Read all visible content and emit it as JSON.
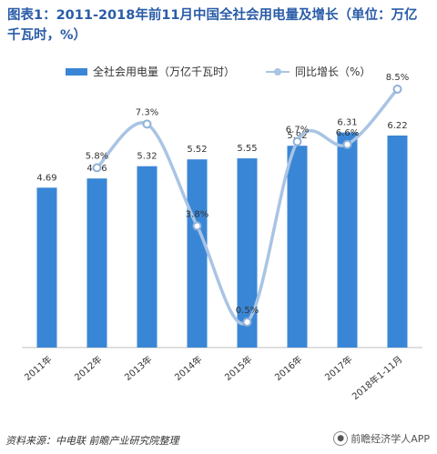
{
  "title": "图表1：2011-2018年前11月中国全社会用电量及增长（单位：万亿千瓦时，%）",
  "legend": {
    "bar_label": "全社会用电量（万亿千瓦时）",
    "line_label": "同比增长（%）"
  },
  "source": "资料来源：中电联 前瞻产业研究院整理",
  "badge": "前瞻经济学人APP",
  "colors": {
    "bar": "#3a86d6",
    "line": "#a9c4e4",
    "title": "#2a5ca8"
  },
  "chart_data": {
    "type": "bar",
    "categories": [
      "2011年",
      "2012年",
      "2013年",
      "2014年",
      "2015年",
      "2016年",
      "2017年",
      "2018年1-11月"
    ],
    "series": [
      {
        "name": "全社会用电量（万亿千瓦时）",
        "type": "bar",
        "values": [
          4.69,
          4.96,
          5.32,
          5.52,
          5.55,
          5.92,
          6.31,
          6.22
        ],
        "labels": [
          "4.69",
          "4.96",
          "5.32",
          "5.52",
          "5.55",
          "5.92",
          "6.31",
          "6.22"
        ]
      },
      {
        "name": "同比增长（%）",
        "type": "line",
        "smooth": true,
        "values": [
          null,
          5.8,
          7.3,
          3.8,
          0.5,
          6.7,
          6.6,
          8.5
        ],
        "labels": [
          "",
          "5.8%",
          "7.3%",
          "3.8%",
          "0.5%",
          "6.7%",
          "6.6%",
          "8.5%"
        ]
      }
    ],
    "axes": {
      "bar_ylim": [
        0,
        7.0
      ],
      "line_ylim": [
        0,
        8.5
      ],
      "grid": false
    },
    "legend_position": "top"
  }
}
